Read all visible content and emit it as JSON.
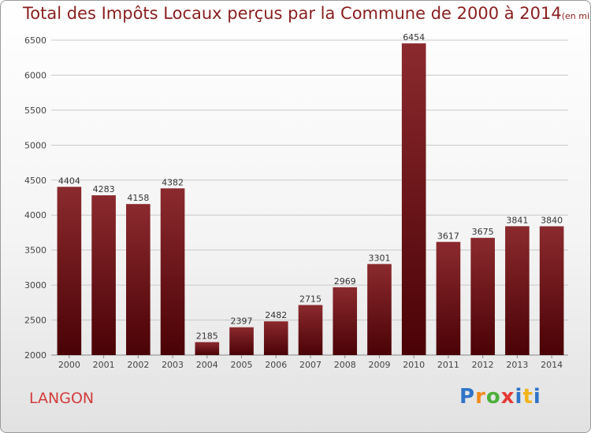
{
  "title": "Total des Impôts Locaux perçus par la Commune de 2000 à 2014",
  "unit_note": "(en milliers d'€)",
  "commune": "LANGON",
  "logo_text": "Proxiti",
  "colors": {
    "bar_top": "#8b2a2e",
    "bar_bottom": "#4a0206",
    "title": "#8a1e1e",
    "commune": "#d33b3b",
    "grid": "#c8c8c8"
  },
  "chart_data": {
    "type": "bar",
    "title": "Total des Impôts Locaux perçus par la Commune de 2000 à 2014",
    "ylabel": "en milliers d'€",
    "xlabel": "",
    "categories": [
      "2000",
      "2001",
      "2002",
      "2003",
      "2004",
      "2005",
      "2006",
      "2007",
      "2008",
      "2009",
      "2010",
      "2011",
      "2012",
      "2013",
      "2014"
    ],
    "values": [
      4404,
      4283,
      4158,
      4382,
      2185,
      2397,
      2482,
      2715,
      2969,
      3301,
      6454,
      3617,
      3675,
      3841,
      3840
    ],
    "ylim": [
      2000,
      6500
    ],
    "yticks": [
      2000,
      2500,
      3000,
      3500,
      4000,
      4500,
      5000,
      5500,
      6000,
      6500
    ],
    "grid": true,
    "data_labels": true
  }
}
